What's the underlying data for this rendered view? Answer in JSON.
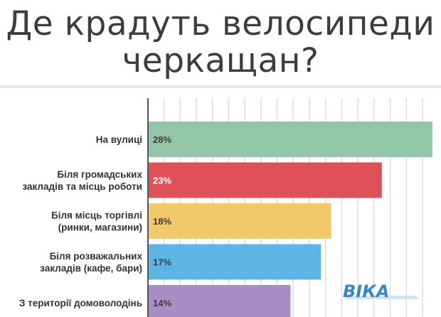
{
  "title_lines": [
    "Де крадуть велосипеди",
    "черкащан?"
  ],
  "logo": {
    "text": "ВІКА",
    "color": "#3a86c8"
  },
  "chart_data": {
    "type": "bar",
    "orientation": "horizontal",
    "title": "Де крадуть велосипеди черкащан?",
    "xlim": [
      0,
      28
    ],
    "grid": true,
    "categories": [
      [
        "На вулиці"
      ],
      [
        "Біля громадських",
        "закладів та місць роботи"
      ],
      [
        "Біля місць торгівлі",
        "(ринки, магазини)"
      ],
      [
        "Біля розважальних",
        "закладів (кафе, бари)"
      ],
      [
        "З території домоволодінь"
      ]
    ],
    "values": [
      28,
      23,
      18,
      17,
      14
    ],
    "value_labels": [
      "28%",
      "23%",
      "18%",
      "17%",
      "14%"
    ],
    "colors": [
      "#93c6a8",
      "#df5159",
      "#f1c86a",
      "#5db5e5",
      "#a98ec6"
    ],
    "label_colors": [
      "#3d3d3d",
      "#ffffff",
      "#3d3d3d",
      "#3d3d3d",
      "#3d3d3d"
    ]
  }
}
